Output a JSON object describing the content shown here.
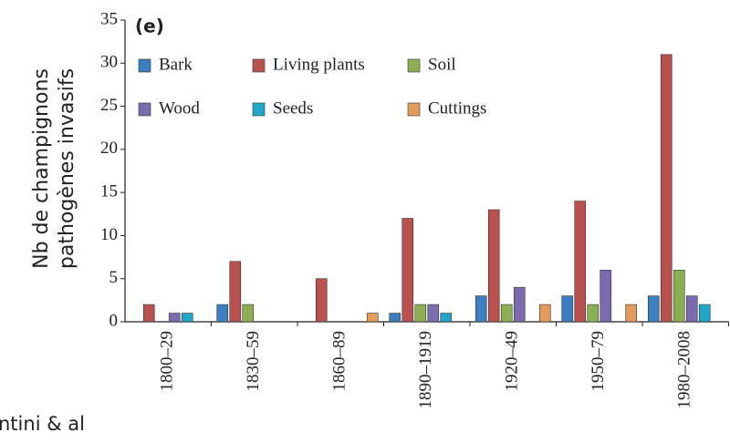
{
  "chart_data": {
    "type": "bar",
    "annotation": "(e)",
    "ylabel": [
      "Nb de champignons",
      "pathogènes invasifs"
    ],
    "footnote": "ntini & al",
    "categories": [
      "1800–29",
      "1830–59",
      "1860–89",
      "1890–1919",
      "1920–49",
      "1950–79",
      "1980–2008"
    ],
    "series": [
      {
        "name": "Bark",
        "color": "#3b7fc0",
        "values": [
          0,
          2,
          0,
          1,
          3,
          3,
          3
        ]
      },
      {
        "name": "Living plants",
        "color": "#b9514e",
        "values": [
          2,
          7,
          5,
          12,
          13,
          14,
          31
        ]
      },
      {
        "name": "Soil",
        "color": "#8daf54",
        "values": [
          0,
          2,
          0,
          2,
          2,
          2,
          6
        ]
      },
      {
        "name": "Wood",
        "color": "#7a6cae",
        "values": [
          1,
          0,
          0,
          2,
          4,
          6,
          3
        ]
      },
      {
        "name": "Seeds",
        "color": "#1fa6c9",
        "values": [
          1,
          0,
          0,
          1,
          0,
          0,
          2
        ]
      },
      {
        "name": "Cuttings",
        "color": "#e39a5b",
        "values": [
          0,
          0,
          1,
          0,
          2,
          2,
          0
        ]
      }
    ],
    "ylim": [
      0,
      35
    ],
    "yticks": [
      0,
      5,
      10,
      15,
      20,
      25,
      30,
      35
    ],
    "grid": false
  }
}
